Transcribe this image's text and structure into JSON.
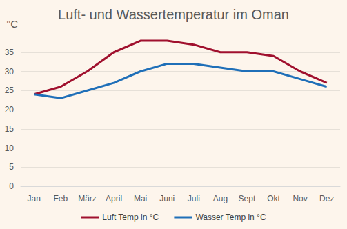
{
  "chart_data": {
    "type": "line",
    "title": "Luft- und Wassertemperatur im Oman",
    "y_label": "°C",
    "categories": [
      "Jan",
      "Feb",
      "März",
      "April",
      "Mai",
      "Juni",
      "Juli",
      "Aug",
      "Sept",
      "Okt",
      "Nov",
      "Dez"
    ],
    "series": [
      {
        "name": "Luft Temp in °C",
        "color": "#a0102e",
        "values": [
          24,
          26,
          30,
          35,
          38,
          38,
          37,
          35,
          35,
          34,
          30,
          27
        ]
      },
      {
        "name": "Wasser Temp in °C",
        "color": "#1f6fb8",
        "values": [
          24,
          23,
          25,
          27,
          30,
          32,
          32,
          31,
          30,
          30,
          28,
          26
        ]
      }
    ],
    "ylim": [
      0,
      40
    ],
    "yticks": [
      0,
      5,
      10,
      15,
      20,
      25,
      30,
      35
    ],
    "grid": true,
    "legend": "bottom"
  }
}
